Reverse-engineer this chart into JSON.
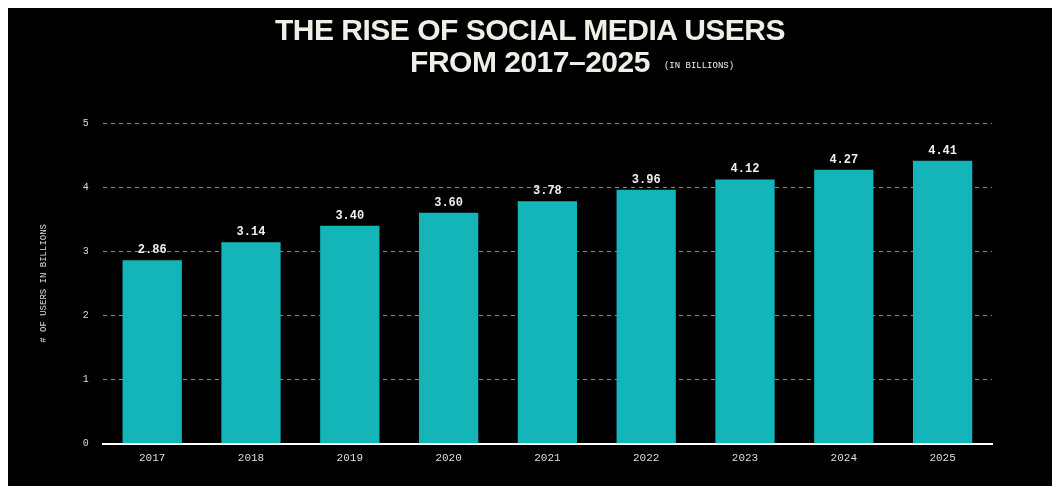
{
  "chart_data": {
    "type": "bar",
    "title": "THE RISE OF SOCIAL MEDIA USERS\nFROM 2017–2025",
    "subtitle": "(IN BILLIONS)",
    "ylabel": "# OF USERS IN BILLIONS",
    "categories": [
      "2017",
      "2018",
      "2019",
      "2020",
      "2021",
      "2022",
      "2023",
      "2024",
      "2025"
    ],
    "values": [
      2.86,
      3.14,
      3.4,
      3.6,
      3.78,
      3.96,
      4.12,
      4.27,
      4.41
    ],
    "value_labels": [
      "2.86",
      "3.14",
      "3.40",
      "3.60",
      "3.78",
      "3.96",
      "4.12",
      "4.27",
      "4.41"
    ],
    "color": "#13b5b8",
    "ylim": [
      0,
      5
    ],
    "yticks": [
      0,
      1,
      2,
      3,
      4,
      5
    ],
    "grid": "y"
  }
}
